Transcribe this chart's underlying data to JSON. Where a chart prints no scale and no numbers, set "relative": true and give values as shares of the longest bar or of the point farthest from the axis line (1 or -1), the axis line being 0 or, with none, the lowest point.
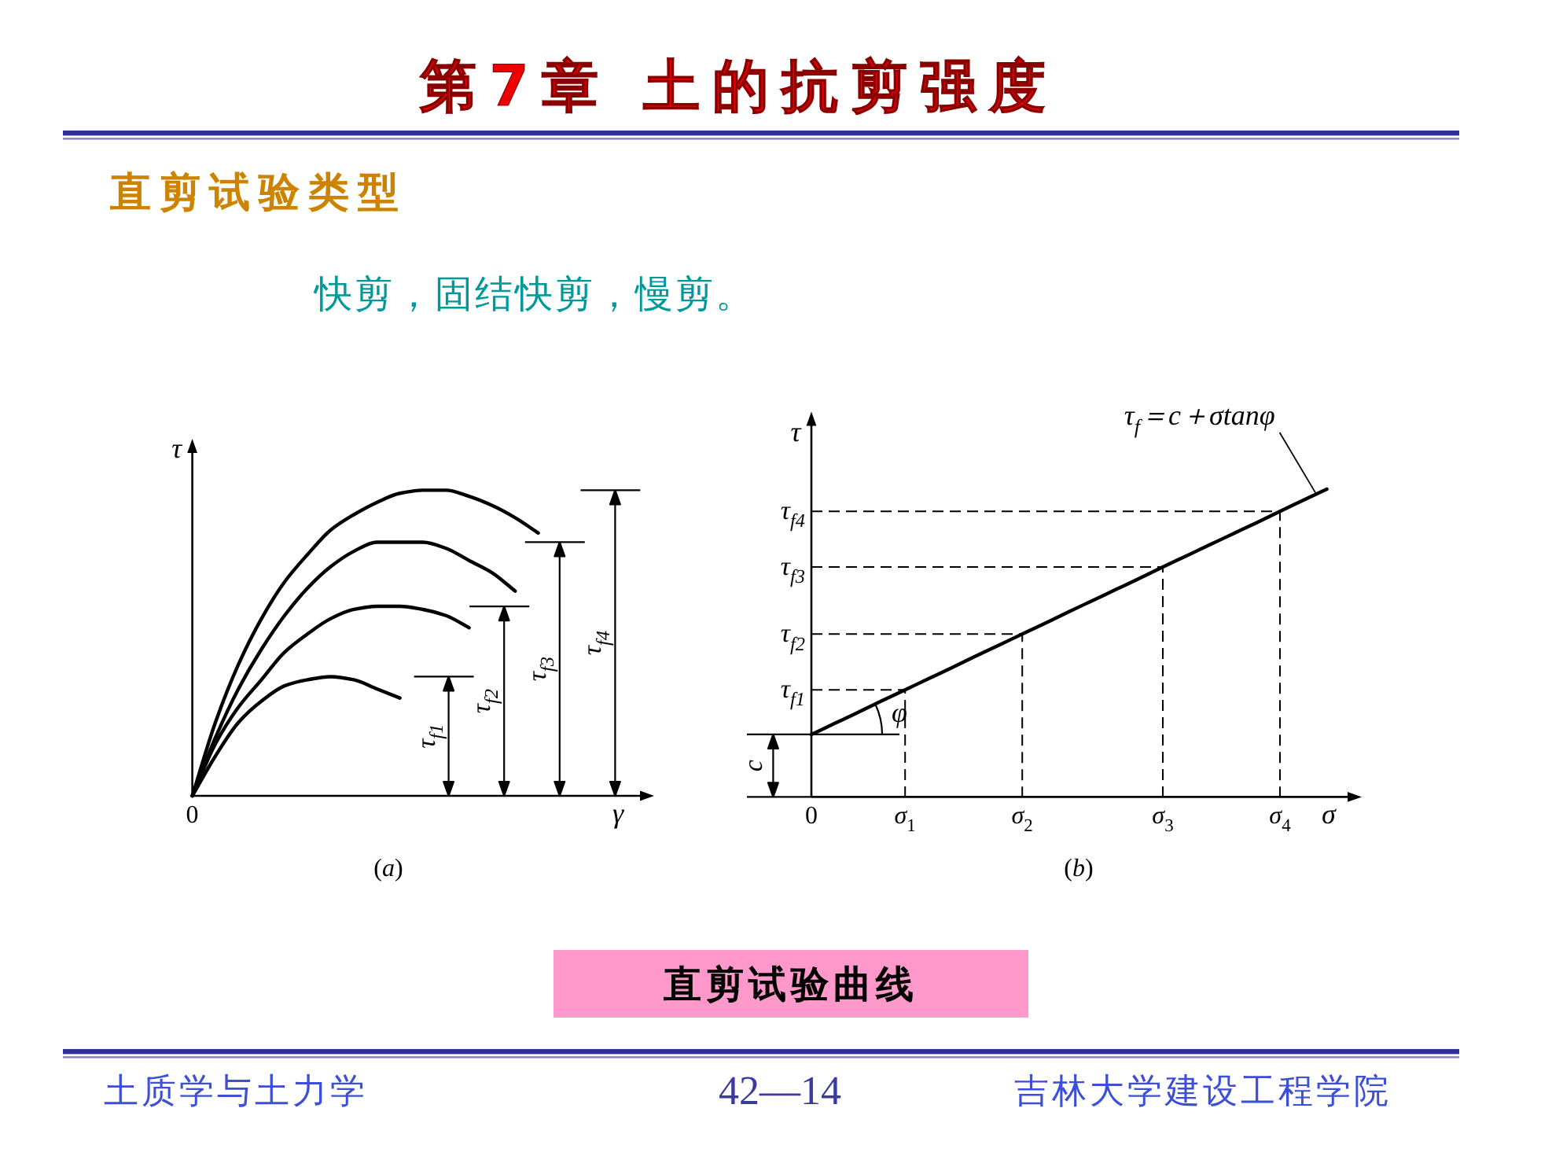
{
  "chart_data": [
    {
      "type": "line",
      "title": "第7章 土的抗剪强度",
      "subtitle": "直剪试验类型",
      "relative": true,
      "xlabel": "γ",
      "ylabel": "τ",
      "categories": [
        null,
        null,
        null,
        null,
        null,
        null,
        null,
        null,
        null,
        null,
        null,
        null,
        null,
        null,
        null,
        null
      ],
      "series": [
        {
          "color": "#000000",
          "values": [
            0,
            0.13,
            0.24,
            0.31,
            0.36,
            0.38,
            0.39,
            0.38,
            0.35,
            0.32,
            null,
            null,
            null,
            null,
            null,
            null
          ]
        },
        {
          "color": "#000000",
          "values": [
            0,
            0.17,
            0.29,
            0.38,
            0.47,
            0.53,
            0.58,
            0.61,
            0.62,
            0.62,
            0.61,
            0.59,
            0.55,
            null,
            null,
            null
          ]
        },
        {
          "color": "#000000",
          "values": [
            0,
            0.19,
            0.35,
            0.48,
            0.59,
            0.68,
            0.75,
            0.8,
            0.83,
            0.83,
            0.83,
            0.81,
            0.77,
            0.73,
            0.67,
            null
          ]
        },
        {
          "color": "#000000",
          "values": [
            0,
            0.24,
            0.43,
            0.58,
            0.7,
            0.79,
            0.87,
            0.92,
            0.96,
            0.99,
            1,
            1,
            0.98,
            0.95,
            0.91,
            0.86
          ]
        }
      ],
      "annotations": [
        "快剪，固结快剪，慢剪。",
        "(*a*)",
        "0",
        "τ$_{f1}$",
        "τ$_{f2}$",
        "τ$_{f3}$",
        "τ$_{f4}$"
      ]
    },
    {
      "type": "line",
      "relative": true,
      "xlabel": "σ",
      "ylabel": "τ",
      "categories": [
        "0",
        null,
        null,
        null,
        "*σ*$_{1}$",
        null,
        null,
        null,
        null,
        "*σ*$_{2}$",
        null,
        null,
        null,
        null,
        null,
        "*σ*$_{3}$",
        null,
        null,
        null,
        null,
        "*σ*$_{4}$",
        null,
        null
      ],
      "series": [
        {
          "name": "τ$_{f}$＝c＋σtanφ",
          "color": "#000000",
          "values": [
            0.203,
            0.239,
            0.275,
            0.312,
            0.348,
            0.384,
            0.42,
            0.457,
            0.493,
            0.529,
            0.565,
            0.602,
            0.638,
            0.674,
            0.71,
            0.747,
            0.783,
            0.819,
            0.855,
            0.891,
            0.928,
            0.964,
            1
          ]
        }
      ],
      "annotations": [
        "(*b*)",
        "φ",
        "τ$_{f1}$",
        "τ$_{f2}$",
        "τ$_{f3}$",
        "τ$_{f4}$",
        "c",
        "直剪试验曲线",
        "土质学与土力学",
        "42—14",
        "吉林大学建设工程学院"
      ]
    }
  ]
}
